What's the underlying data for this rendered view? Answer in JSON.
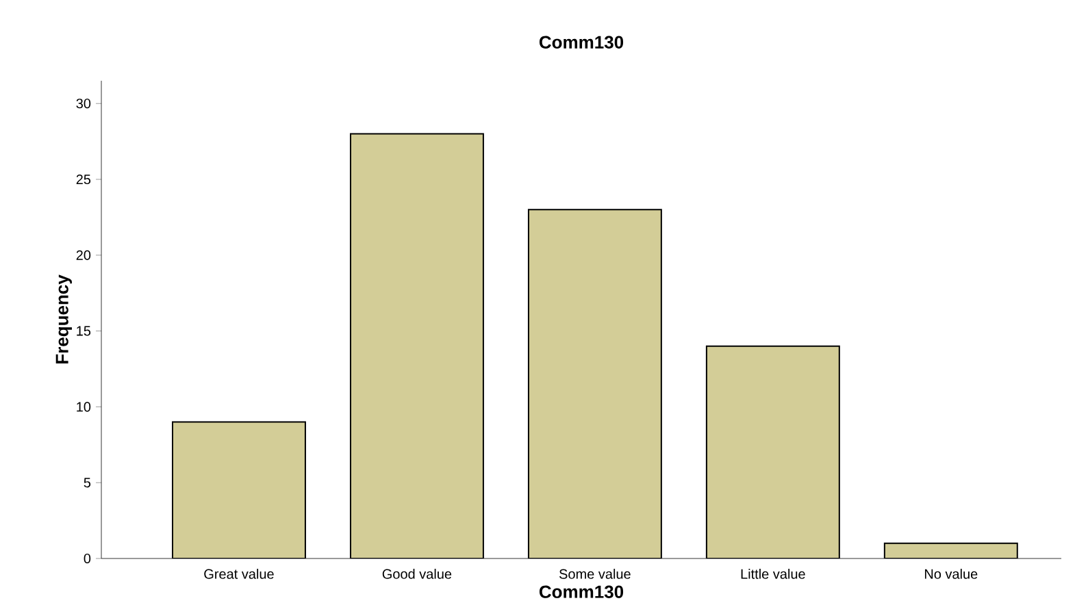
{
  "chart_data": {
    "type": "bar",
    "title": "Comm130",
    "xlabel": "Comm130",
    "ylabel": "Frequency",
    "categories": [
      "Great value",
      "Good value",
      "Some value",
      "Little value",
      "No value"
    ],
    "values": [
      9,
      28,
      23,
      14,
      1
    ],
    "color": "#d3cd97",
    "ylim": [
      0,
      31.5
    ],
    "yticks": [
      0,
      5,
      10,
      15,
      20,
      25,
      30
    ]
  }
}
